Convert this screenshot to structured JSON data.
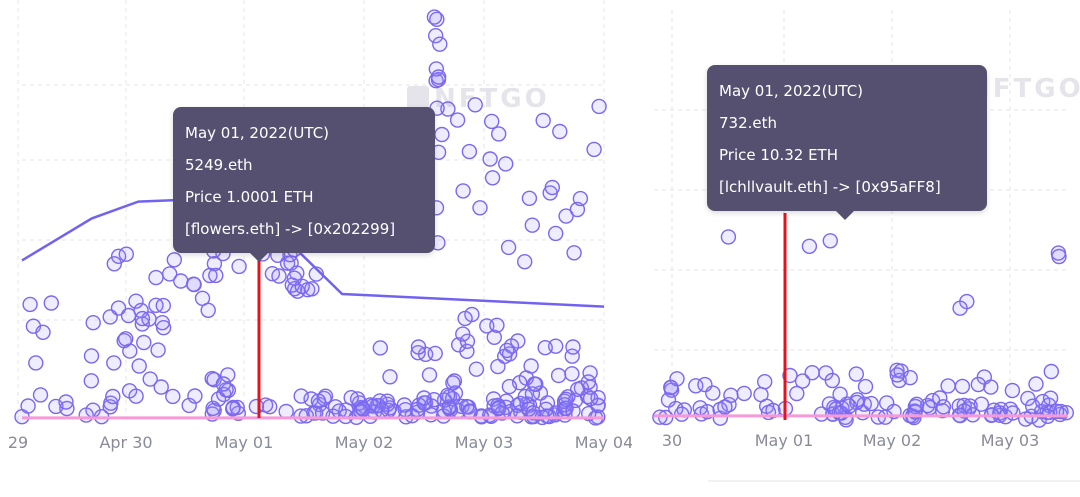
{
  "colors": {
    "point_stroke": "#7b68f0",
    "point_fill": "rgba(150,135,255,0.16)",
    "avg_line": "#7262f2",
    "floor_line": "#f59ad6",
    "cursor_line": "#e3121d",
    "tooltip_bg": "#55506f",
    "grid": "#e6e6ea",
    "tick_text": "#8a8a9a"
  },
  "watermark": {
    "text": "NFTGO",
    "icon": "nftgo-logo-icon"
  },
  "chart_data": [
    {
      "type": "scatter",
      "x_ticks": [
        "29",
        "Apr 30",
        "May 01",
        "May 02",
        "May 03",
        "May 04"
      ],
      "tooltip": {
        "date": "May 01, 2022(UTC)",
        "name": "5249.eth",
        "price": "Price 1.0001 ETH",
        "transfer": "[flowers.eth] -> [0x202299]"
      },
      "series": [
        {
          "kind": "average-line",
          "points": [
            [
              0.0,
              0.38
            ],
            [
              0.12,
              0.48
            ],
            [
              0.2,
              0.52
            ],
            [
              0.38,
              0.53
            ],
            [
              0.55,
              0.3
            ],
            [
              1.0,
              0.27
            ]
          ]
        },
        {
          "kind": "floor-line",
          "points": [
            [
              0.0,
              0.005
            ],
            [
              1.0,
              0.005
            ]
          ]
        }
      ]
    },
    {
      "type": "scatter",
      "x_ticks": [
        "30",
        "May 01",
        "May 02",
        "May 03"
      ],
      "tooltip": {
        "date": "May 01, 2022(UTC)",
        "name": "732.eth",
        "price": "Price 10.32 ETH",
        "transfer": "[lchllvault.eth] -> [0x95aFF8]"
      },
      "series": [
        {
          "kind": "floor-line",
          "points": [
            [
              0.0,
              0.01
            ],
            [
              1.0,
              0.01
            ]
          ]
        }
      ]
    }
  ]
}
